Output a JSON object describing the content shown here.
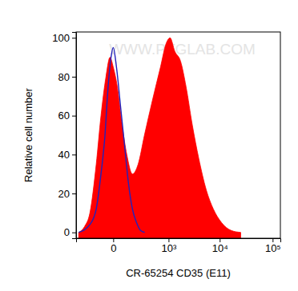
{
  "chart_data": {
    "type": "area",
    "x_label": "CR-65254 CD35 (E11)",
    "y_label": "Relative cell number",
    "annotations": [
      "WWW.PTGLAB.COM"
    ],
    "log": "x",
    "xlim": [
      -400,
      140000
    ],
    "xticks": [
      0,
      {
        "value": 1000,
        "label": "10³"
      },
      {
        "value": 10000,
        "label": "10⁴"
      },
      {
        "value": 100000,
        "label": "10⁵"
      }
    ],
    "ylim": [
      -3,
      103
    ],
    "yticks": [
      0,
      20,
      40,
      60,
      80,
      100
    ],
    "series": [
      {
        "type": "area",
        "color": "#ff0000",
        "x": [
          -347,
          -247,
          -175,
          -109,
          -70,
          -37,
          -15,
          0,
          19,
          47,
          80,
          130,
          194,
          287,
          448,
          676,
          888,
          1075,
          1345,
          1750,
          2245,
          2990,
          3975,
          5520,
          7575,
          10860,
          16500,
          25000
        ],
        "values": [
          0,
          3,
          10,
          35,
          60,
          80,
          90,
          85,
          75,
          55,
          40,
          30,
          35,
          50,
          68,
          85,
          97,
          100,
          93,
          88,
          75,
          55,
          38,
          22,
          12,
          5,
          1,
          0
        ]
      },
      {
        "type": "line",
        "color": "#2222bb",
        "x": [
          -347,
          -175,
          -109,
          -70,
          -43,
          -27,
          -10,
          0,
          15,
          37,
          63,
          94,
          130,
          175,
          226,
          290
        ],
        "values": [
          0,
          4,
          12,
          30,
          50,
          72,
          90,
          95,
          85,
          65,
          45,
          25,
          12,
          5,
          1,
          0
        ]
      }
    ]
  }
}
